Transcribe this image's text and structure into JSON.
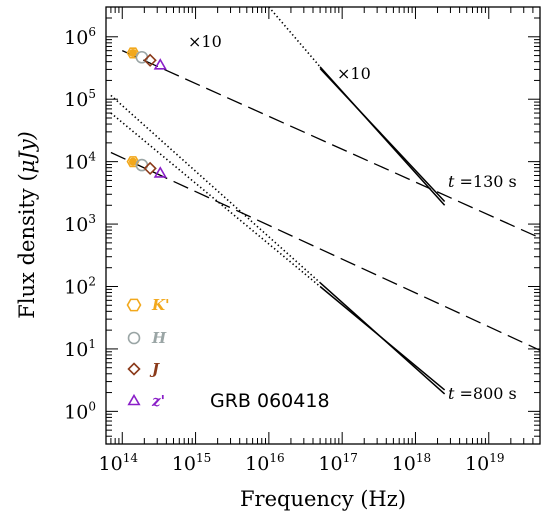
{
  "chart_data": {
    "type": "scatter",
    "xlabel": "Frequency (Hz)",
    "ylabel_main": "Flux density (",
    "ylabel_unit": "μJy)",
    "x_log": true,
    "y_log": true,
    "xlim": [
      60000000000000.0,
      5e+19
    ],
    "ylim": [
      0.3,
      3000000.0
    ],
    "x_ticks": [
      {
        "value": 100000000000000.0,
        "base": "10",
        "exp": "14"
      },
      {
        "value": 1000000000000000.0,
        "base": "10",
        "exp": "15"
      },
      {
        "value": 1e+16,
        "base": "10",
        "exp": "16"
      },
      {
        "value": 1e+17,
        "base": "10",
        "exp": "17"
      },
      {
        "value": 1e+18,
        "base": "10",
        "exp": "18"
      },
      {
        "value": 1e+19,
        "base": "10",
        "exp": "19"
      }
    ],
    "y_ticks": [
      {
        "value": 1,
        "base": "10",
        "exp": "0"
      },
      {
        "value": 10,
        "base": "10",
        "exp": "1"
      },
      {
        "value": 100,
        "base": "10",
        "exp": "2"
      },
      {
        "value": 1000,
        "base": "10",
        "exp": "3"
      },
      {
        "value": 10000,
        "base": "10",
        "exp": "4"
      },
      {
        "value": 100000,
        "base": "10",
        "exp": "5"
      },
      {
        "value": 1000000,
        "base": "10",
        "exp": "6"
      }
    ],
    "series": [
      {
        "name": "K'",
        "marker": "hexagon",
        "color": "#F2A81C",
        "points": [
          {
            "x": 140000000000000.0,
            "y": 550000
          },
          {
            "x": 140000000000000.0,
            "y": 10000
          }
        ]
      },
      {
        "name": "H",
        "marker": "circle",
        "color": "#9AA5A5",
        "points": [
          {
            "x": 185000000000000.0,
            "y": 470000
          },
          {
            "x": 185000000000000.0,
            "y": 8800
          }
        ]
      },
      {
        "name": "J",
        "marker": "diamond",
        "color": "#8B3A1A",
        "points": [
          {
            "x": 240000000000000.0,
            "y": 420000
          },
          {
            "x": 240000000000000.0,
            "y": 7800
          }
        ]
      },
      {
        "name": "z'",
        "marker": "triangle",
        "color": "#8A1FC8",
        "points": [
          {
            "x": 330000000000000.0,
            "y": 350000
          },
          {
            "x": 330000000000000.0,
            "y": 6500
          }
        ]
      }
    ],
    "model_lines": [
      {
        "style": "dashed",
        "points": [
          {
            "x": 100000000000000.0,
            "y": 600000
          },
          {
            "x": 5e+19,
            "y": 600
          }
        ]
      },
      {
        "style": "dashed",
        "points": [
          {
            "x": 70000000000000.0,
            "y": 14000
          },
          {
            "x": 5e+19,
            "y": 9.5
          }
        ]
      },
      {
        "style": "dotted",
        "points": [
          {
            "x": 70000000000000.0,
            "y": 115000
          },
          {
            "x": 5e+16,
            "y": 115
          }
        ]
      },
      {
        "style": "dotted",
        "points": [
          {
            "x": 70000000000000.0,
            "y": 60000
          },
          {
            "x": 5e+16,
            "y": 100
          }
        ]
      },
      {
        "style": "dotted",
        "points": [
          {
            "x": 1e+16,
            "y": 3000000
          },
          {
            "x": 5e+16,
            "y": 330000
          }
        ]
      }
    ],
    "xray_segments": [
      {
        "points": [
          {
            "x": 5e+16,
            "y": 330000
          },
          {
            "x": 2.5e+18,
            "y": 2000
          }
        ]
      },
      {
        "points": [
          {
            "x": 5e+16,
            "y": 310000
          },
          {
            "x": 2.5e+18,
            "y": 2300
          }
        ]
      },
      {
        "points": [
          {
            "x": 5e+16,
            "y": 115
          },
          {
            "x": 2.5e+18,
            "y": 1.9
          }
        ]
      },
      {
        "points": [
          {
            "x": 5e+16,
            "y": 100
          },
          {
            "x": 2.5e+18,
            "y": 2.2
          }
        ]
      }
    ],
    "annotations": {
      "times10_opt": "×10",
      "times10_xray": "×10",
      "t130_t": "t",
      "t130_rest": " =130  s",
      "t800_t": "t",
      "t800_rest": " =800  s",
      "grb": "GRB 060418"
    },
    "legend_position": "bottom-left"
  }
}
